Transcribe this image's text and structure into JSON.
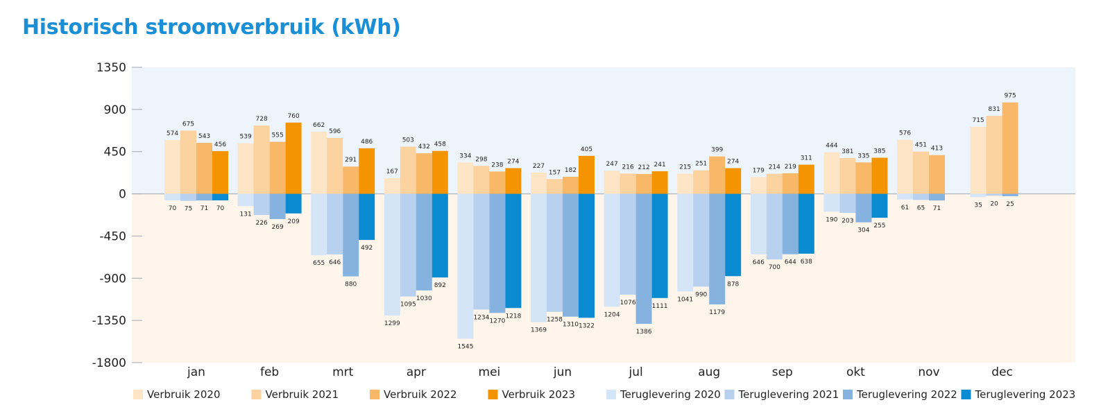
{
  "chart_data": {
    "type": "bar",
    "title": "Historisch stroomverbruik (kWh)",
    "xlabel": "",
    "ylabel": "",
    "ylim": [
      -1800,
      1350
    ],
    "yticks": [
      1350,
      900,
      450,
      0,
      -450,
      -900,
      -1350,
      -1800
    ],
    "grid": false,
    "legend_position": "bottom",
    "categories": [
      "jan",
      "feb",
      "mrt",
      "apr",
      "mei",
      "jun",
      "jul",
      "aug",
      "sep",
      "okt",
      "nov",
      "dec"
    ],
    "series": [
      {
        "name": "Verbruik 2020",
        "color": "#fde5c6",
        "values": [
          574,
          539,
          662,
          167,
          334,
          227,
          247,
          215,
          179,
          444,
          576,
          715
        ]
      },
      {
        "name": "Verbruik 2021",
        "color": "#fcd29f",
        "values": [
          675,
          728,
          596,
          503,
          298,
          157,
          216,
          251,
          214,
          381,
          451,
          831
        ]
      },
      {
        "name": "Verbruik 2022",
        "color": "#f8b867",
        "values": [
          543,
          555,
          291,
          432,
          238,
          182,
          212,
          399,
          219,
          335,
          413,
          975
        ]
      },
      {
        "name": "Verbruik 2023",
        "color": "#f39400",
        "values": [
          456,
          760,
          486,
          458,
          274,
          405,
          241,
          274,
          311,
          385,
          null,
          null
        ]
      },
      {
        "name": "Teruglevering 2020",
        "color": "#d5e5f8",
        "values": [
          -70,
          -131,
          -655,
          -1299,
          -1545,
          -1369,
          -1204,
          -1041,
          -646,
          -190,
          -61,
          -35
        ]
      },
      {
        "name": "Teruglevering 2021",
        "color": "#b7d1ee",
        "values": [
          -75,
          -226,
          -646,
          -1095,
          -1234,
          -1258,
          -1076,
          -990,
          -700,
          -203,
          -65,
          -20
        ]
      },
      {
        "name": "Teruglevering 2022",
        "color": "#86b2e0",
        "values": [
          -71,
          -269,
          -880,
          -1030,
          -1270,
          -1310,
          -1386,
          -1179,
          -644,
          -304,
          -71,
          -25
        ]
      },
      {
        "name": "Teruglevering 2023",
        "color": "#0a8ad0",
        "values": [
          -70,
          -209,
          -492,
          -892,
          -1218,
          -1322,
          -1111,
          -878,
          -638,
          -255,
          null,
          null
        ]
      }
    ],
    "label_overrides": {
      "Teruglevering 2020": [
        70,
        131,
        655,
        1299,
        1545,
        1369,
        1204,
        1041,
        646,
        190,
        61,
        35
      ],
      "Teruglevering 2021": [
        75,
        226,
        646,
        1095,
        1234,
        1258,
        1076,
        990,
        700,
        203,
        65,
        20
      ],
      "Teruglevering 2022": [
        71,
        269,
        880,
        1030,
        1270,
        1310,
        1386,
        1179,
        644,
        304,
        71,
        25
      ],
      "Teruglevering 2023": [
        70,
        209,
        492,
        892,
        1218,
        1322,
        1111,
        878,
        638,
        255,
        null,
        null
      ]
    },
    "background_colors": {
      "positive": "#eef4fc",
      "negative": "#fff5eb"
    },
    "axis_color": "#9fa8b2",
    "title_color": "#1a8fd6"
  }
}
